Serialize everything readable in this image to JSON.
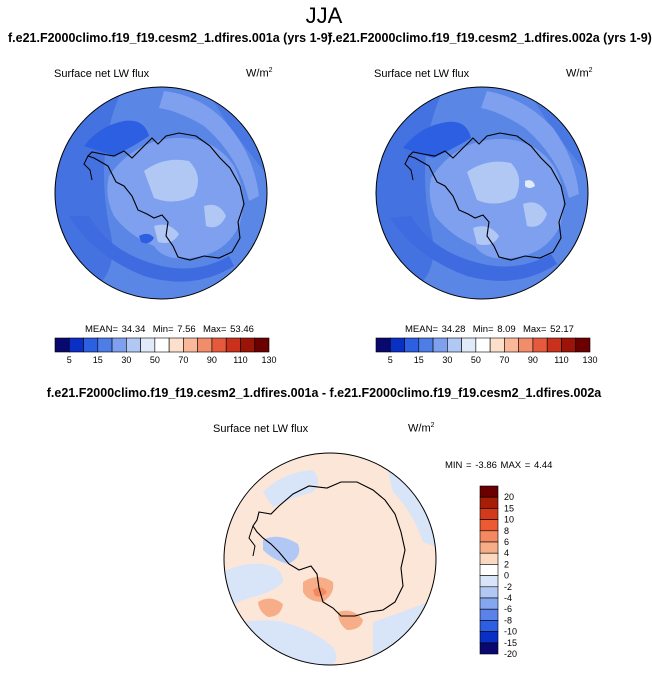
{
  "season": "JJA",
  "panels": [
    {
      "case": "f.e21.F2000climo.f19_f19.cesm2_1.dfires.001a (yrs 1-9)",
      "variable": "Surface net LW flux",
      "units_base": "W/m",
      "units_exp": "2",
      "stats": {
        "mean_label": "MEAN=",
        "mean": "34.34",
        "min_label": "Min=",
        "min": "7.56",
        "max_label": "Max=",
        "max": "53.46"
      },
      "colorbar_labels": [
        "5",
        "15",
        "30",
        "50",
        "70",
        "90",
        "110",
        "130"
      ]
    },
    {
      "case": "f.e21.F2000climo.f19_f19.cesm2_1.dfires.002a (yrs 1-9)",
      "variable": "Surface net LW flux",
      "units_base": "W/m",
      "units_exp": "2",
      "stats": {
        "mean_label": "MEAN=",
        "mean": "34.28",
        "min_label": "Min=",
        "min": "8.09",
        "max_label": "Max=",
        "max": "52.17"
      },
      "colorbar_labels": [
        "5",
        "15",
        "30",
        "50",
        "70",
        "90",
        "110",
        "130"
      ]
    }
  ],
  "difference": {
    "title": "f.e21.F2000climo.f19_f19.cesm2_1.dfires.001a - f.e21.F2000climo.f19_f19.cesm2_1.dfires.002a",
    "variable": "Surface net LW flux",
    "units_base": "W/m",
    "units_exp": "2",
    "stats": {
      "min_label": "MIN =",
      "min": "-3.86",
      "max_label": "MAX =",
      "max": "4.44"
    },
    "colorbar_labels": [
      "20",
      "15",
      "10",
      "8",
      "6",
      "4",
      "2",
      "0",
      "-2",
      "-4",
      "-6",
      "-8",
      "-10",
      "-15",
      "-20"
    ]
  },
  "colors": {
    "field_colorbar": [
      "#08086e",
      "#0a2fc4",
      "#2d5fe3",
      "#4f7de6",
      "#7ea0ef",
      "#b1c8f5",
      "#e1eaf8",
      "#ffffff",
      "#fce0cc",
      "#f9b89a",
      "#f28d6c",
      "#e55a3c",
      "#c9311c",
      "#9c1408",
      "#6a0000"
    ],
    "diff_colorbar": [
      "#6a0000",
      "#a51e08",
      "#d23a1c",
      "#ec5a34",
      "#f48860",
      "#f7ae88",
      "#fbd8c2",
      "#ffffff",
      "#d8e4f8",
      "#b1c8f5",
      "#85a7ef",
      "#5a82e8",
      "#2d5fe3",
      "#0a2fc4",
      "#08086e"
    ]
  }
}
